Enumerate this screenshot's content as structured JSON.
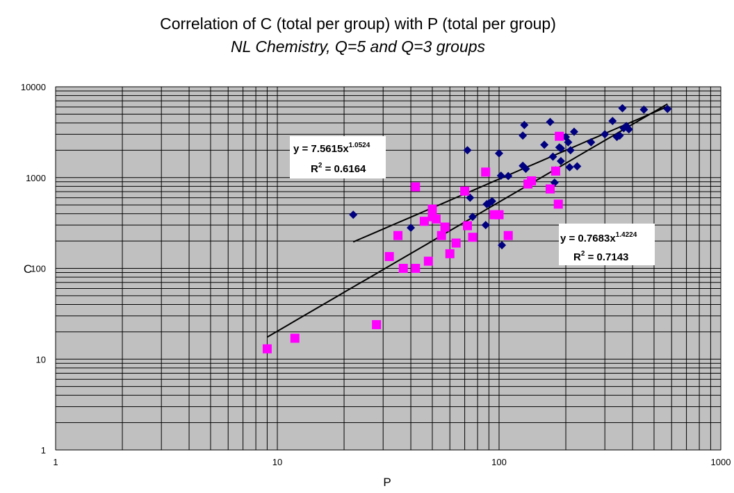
{
  "chart_data": {
    "type": "scatter",
    "title": "Correlation of C (total per group) with P (total per group)",
    "subtitle": "NL Chemistry, Q=5 and Q=3 groups",
    "xlabel": "P",
    "ylabel": "C",
    "xscale": "log",
    "yscale": "log",
    "xlim": [
      1,
      1000
    ],
    "ylim": [
      1,
      10000
    ],
    "x_ticks": [
      "1",
      "10",
      "100",
      "1000"
    ],
    "y_ticks": [
      "1",
      "10",
      "100",
      "1000",
      "10000"
    ],
    "grid": true,
    "legend": "none",
    "plot_background": "#c0c0c0",
    "series": [
      {
        "marker": "diamond",
        "color": "#000080",
        "points": [
          [
            22,
            390
          ],
          [
            40,
            280
          ],
          [
            72,
            2000
          ],
          [
            74,
            600
          ],
          [
            76,
            370
          ],
          [
            87,
            300
          ],
          [
            88,
            510
          ],
          [
            90,
            520
          ],
          [
            93,
            550
          ],
          [
            100,
            1850
          ],
          [
            102,
            1050
          ],
          [
            103,
            180
          ],
          [
            110,
            1040
          ],
          [
            128,
            1350
          ],
          [
            128,
            2900
          ],
          [
            130,
            3800
          ],
          [
            132,
            1250
          ],
          [
            160,
            2300
          ],
          [
            170,
            4100
          ],
          [
            175,
            1700
          ],
          [
            178,
            880
          ],
          [
            180,
            1200
          ],
          [
            187,
            2150
          ],
          [
            190,
            2100
          ],
          [
            190,
            1520
          ],
          [
            200,
            2800
          ],
          [
            205,
            2450
          ],
          [
            208,
            1300
          ],
          [
            210,
            2000
          ],
          [
            218,
            3200
          ],
          [
            225,
            1330
          ],
          [
            260,
            2450
          ],
          [
            300,
            3000
          ],
          [
            325,
            4200
          ],
          [
            340,
            2800
          ],
          [
            350,
            2900
          ],
          [
            360,
            5800
          ],
          [
            365,
            3500
          ],
          [
            375,
            3700
          ],
          [
            385,
            3400
          ],
          [
            450,
            5600
          ],
          [
            575,
            5700
          ]
        ],
        "trendline": {
          "type": "power",
          "a": 7.5615,
          "b": 1.0524,
          "x_range": [
            22,
            575
          ],
          "equation_base": "y = 7.5615x",
          "equation_exp": "1.0524",
          "r2_base": "R",
          "r2_sup": "2",
          "r2_value": " = 0.6164"
        }
      },
      {
        "marker": "square",
        "color": "#ff00ff",
        "points": [
          [
            9,
            13
          ],
          [
            12,
            17
          ],
          [
            28,
            24
          ],
          [
            32,
            135
          ],
          [
            35,
            230
          ],
          [
            37,
            100
          ],
          [
            42,
            790
          ],
          [
            42,
            100
          ],
          [
            46,
            330
          ],
          [
            48,
            120
          ],
          [
            50,
            450
          ],
          [
            50,
            370
          ],
          [
            52,
            350
          ],
          [
            55,
            230
          ],
          [
            57,
            285
          ],
          [
            60,
            145
          ],
          [
            64,
            190
          ],
          [
            70,
            710
          ],
          [
            72,
            295
          ],
          [
            76,
            220
          ],
          [
            87,
            1150
          ],
          [
            95,
            390
          ],
          [
            100,
            390
          ],
          [
            110,
            230
          ],
          [
            135,
            850
          ],
          [
            140,
            920
          ],
          [
            170,
            750
          ],
          [
            180,
            1180
          ],
          [
            185,
            510
          ],
          [
            187,
            2850
          ]
        ],
        "trendline": {
          "type": "power",
          "a": 0.7683,
          "b": 1.4224,
          "x_range": [
            9,
            575
          ],
          "equation_base": "y = 0.7683x",
          "equation_exp": "1.4224",
          "r2_base": "R",
          "r2_sup": "2",
          "r2_value": " = 0.7143"
        }
      }
    ]
  }
}
